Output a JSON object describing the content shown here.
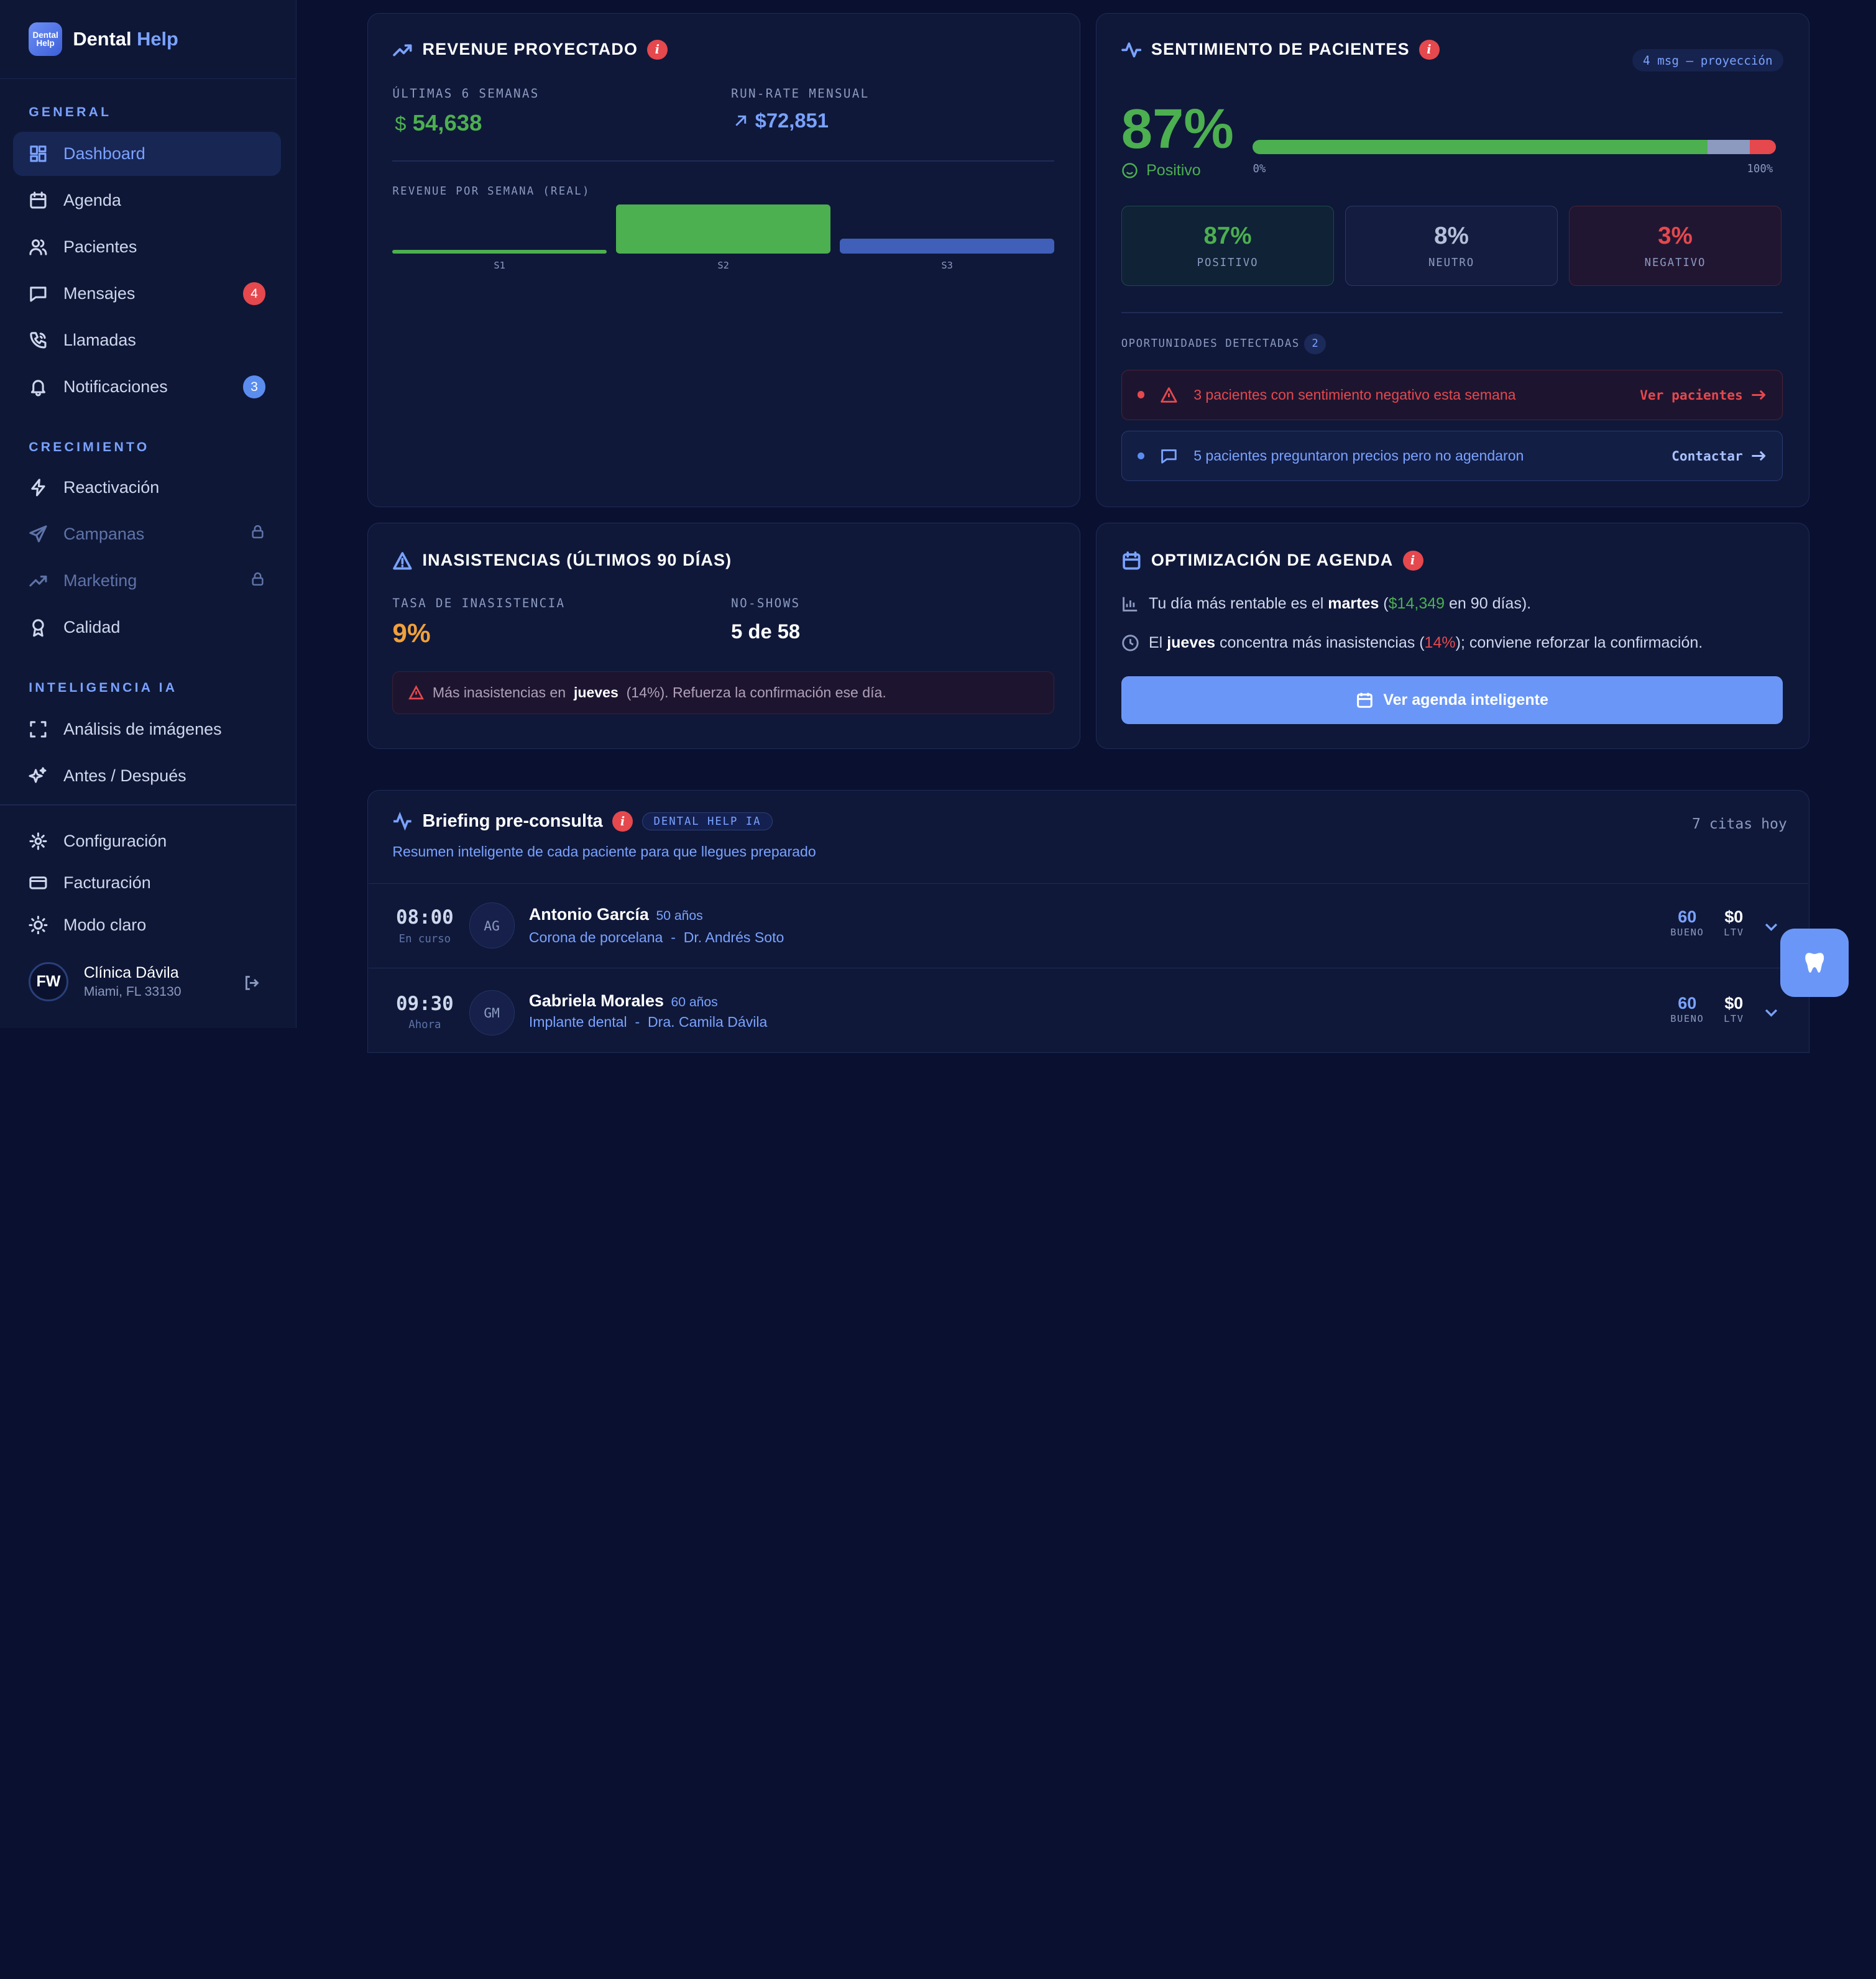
{
  "brand": {
    "logo_text": "Dental Help",
    "name_main": "Dental",
    "name_accent": "Help"
  },
  "sidebar": {
    "sections": {
      "general": "GENERAL",
      "growth": "CRECIMIENTO",
      "ai": "INTELIGENCIA IA"
    },
    "items": [
      {
        "label": "Dashboard",
        "icon": "dashboard-icon",
        "active": true
      },
      {
        "label": "Agenda",
        "icon": "calendar-icon"
      },
      {
        "label": "Pacientes",
        "icon": "users-icon"
      },
      {
        "label": "Mensajes",
        "icon": "message-icon",
        "badge": "4"
      },
      {
        "label": "Llamadas",
        "icon": "phone-icon"
      },
      {
        "label": "Notificaciones",
        "icon": "bell-icon",
        "badge": "3"
      },
      {
        "label": "Reactivación",
        "icon": "bolt-icon"
      },
      {
        "label": "Campanas",
        "icon": "send-icon",
        "locked": true
      },
      {
        "label": "Marketing",
        "icon": "trend-icon",
        "locked": true
      },
      {
        "label": "Calidad",
        "icon": "award-icon"
      },
      {
        "label": "Análisis de imágenes",
        "icon": "scan-icon"
      },
      {
        "label": "Antes / Después",
        "icon": "sparkles-icon"
      }
    ],
    "footer": [
      {
        "label": "Configuración",
        "icon": "gear-icon"
      },
      {
        "label": "Facturación",
        "icon": "card-icon"
      },
      {
        "label": "Modo claro",
        "icon": "sun-icon"
      }
    ],
    "user": {
      "initials": "FW",
      "name": "Clínica Dávila",
      "location": "Miami, FL 33130"
    },
    "badge_colors": {
      "mensajes": "#e5484d",
      "notificaciones": "#5b8def"
    }
  },
  "revenue": {
    "title": "REVENUE PROYECTADO",
    "info": "i",
    "last6_label": "ÚLTIMAS 6 SEMANAS",
    "last6_currency": "$",
    "last6_value": "54,638",
    "runrate_label": "RUN-RATE MENSUAL",
    "runrate_value": "$72,851",
    "chart_label": "REVENUE POR SEMANA (REAL)"
  },
  "chart_data": {
    "type": "bar",
    "categories": [
      "S1",
      "S2",
      "S3"
    ],
    "values": [
      1,
      13,
      4
    ],
    "colors": [
      "#4caf50",
      "#4caf50",
      "#3f5fb8"
    ]
  },
  "sentiment": {
    "title": "SENTIMIENTO DE PACIENTES",
    "info": "i",
    "pill": "4 msg — proyección",
    "percent": "87%",
    "label": "Positivo",
    "scale_min": "0%",
    "scale_max": "100%",
    "positive": {
      "value": "87%",
      "label": "POSITIVO",
      "fraction": 0.87
    },
    "neutral": {
      "value": "8%",
      "label": "NEUTRO",
      "fraction": 0.08
    },
    "negative": {
      "value": "3%",
      "label": "NEGATIVO",
      "fraction": 0.03
    },
    "opportunities_label": "OPORTUNIDADES DETECTADAS",
    "opportunities_count": "2",
    "opportunities": [
      {
        "text": "3 pacientes con sentimiento negativo esta semana",
        "action": "Ver pacientes"
      },
      {
        "text": "5 pacientes preguntaron precios pero no agendaron",
        "action": "Contactar"
      }
    ]
  },
  "noshows": {
    "title": "INASISTENCIAS (ÚLTIMOS 90 DÍAS)",
    "rate_label": "TASA DE INASISTENCIA",
    "rate_value": "9%",
    "count_label": "NO-SHOWS",
    "count_value": "5 de 58",
    "alert_prefix": "Más inasistencias en",
    "alert_day": "jueves",
    "alert_suffix": "(14%). Refuerza la confirmación ese día."
  },
  "agenda": {
    "title": "OPTIMIZACIÓN DE AGENDA",
    "info": "i",
    "line1_a": "Tu día más rentable es el",
    "line1_day": "martes",
    "line1_b": "(",
    "line1_amount": "$14,349",
    "line1_c": "en 90 días).",
    "line2_a": "El",
    "line2_day": "jueves",
    "line2_b": "concentra más inasistencias (",
    "line2_pct": "14%",
    "line2_c": "); conviene reforzar la confirmación.",
    "button": "Ver agenda inteligente"
  },
  "briefing": {
    "title": "Briefing pre-consulta",
    "info": "i",
    "pill": "DENTAL HELP IA",
    "subtitle": "Resumen inteligente de cada paciente para que llegues preparado",
    "count": "7 citas hoy",
    "rows": [
      {
        "time": "08:00",
        "status": "En curso",
        "initials": "AG",
        "name": "Antonio García",
        "age": "50 años",
        "treatment": "Corona de porcelana",
        "sep": "-",
        "doctor": "Dr. Andrés Soto",
        "score": "60",
        "score_label": "BUENO",
        "ltv": "$0",
        "ltv_label": "LTV"
      },
      {
        "time": "09:30",
        "status": "Ahora",
        "initials": "GM",
        "name": "Gabriela Morales",
        "age": "60 años",
        "treatment": "Implante dental",
        "sep": "-",
        "doctor": "Dra. Camila Dávila",
        "score": "60",
        "score_label": "BUENO",
        "ltv": "$0",
        "ltv_label": "LTV"
      }
    ]
  },
  "fab": {
    "icon": "tooth-icon"
  }
}
